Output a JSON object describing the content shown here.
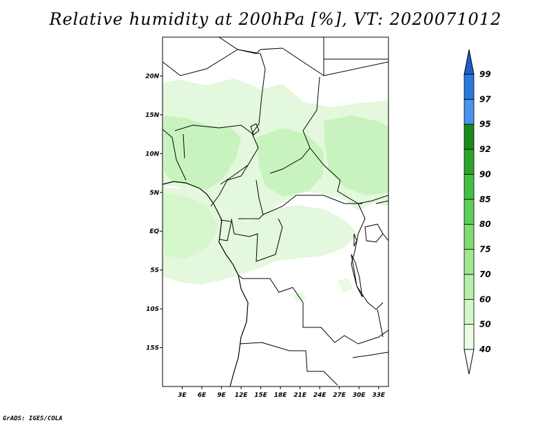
{
  "title": "Relative humidity at 200hPa [%], VT: 2020071012",
  "footer": "GrADS: IGES/COLA",
  "map": {
    "lon_range": [
      0,
      34.5
    ],
    "lat_range": [
      -20,
      25
    ],
    "lat_ticks": [
      {
        "value": 20,
        "label": "20N"
      },
      {
        "value": 15,
        "label": "15N"
      },
      {
        "value": 10,
        "label": "10N"
      },
      {
        "value": 5,
        "label": "5N"
      },
      {
        "value": 0,
        "label": "EQ"
      },
      {
        "value": -5,
        "label": "5S"
      },
      {
        "value": -10,
        "label": "10S"
      },
      {
        "value": -15,
        "label": "15S"
      }
    ],
    "lon_ticks": [
      {
        "value": 3,
        "label": "3E"
      },
      {
        "value": 6,
        "label": "6E"
      },
      {
        "value": 9,
        "label": "9E"
      },
      {
        "value": 12,
        "label": "12E"
      },
      {
        "value": 15,
        "label": "15E"
      },
      {
        "value": 18,
        "label": "18E"
      },
      {
        "value": 21,
        "label": "21E"
      },
      {
        "value": 24,
        "label": "24E"
      },
      {
        "value": 27,
        "label": "27E"
      },
      {
        "value": 30,
        "label": "30E"
      },
      {
        "value": 33,
        "label": "33E"
      }
    ]
  },
  "colorbar": {
    "levels": [
      "40",
      "50",
      "60",
      "70",
      "75",
      "80",
      "85",
      "90",
      "92",
      "95",
      "97",
      "99"
    ],
    "colors": [
      "#e8fbe3",
      "#d2f7c8",
      "#b8f0ab",
      "#9fe88f",
      "#7fdc73",
      "#5fcf5a",
      "#43c043",
      "#2da52d",
      "#1a8a1a",
      "#4696eb",
      "#2a78e0",
      "#1b5fcc"
    ]
  },
  "colors": {
    "land": "#ffffff",
    "lightest_green": "#e8fbe3",
    "light_green": "#c7f2bc",
    "border": "#000000"
  }
}
